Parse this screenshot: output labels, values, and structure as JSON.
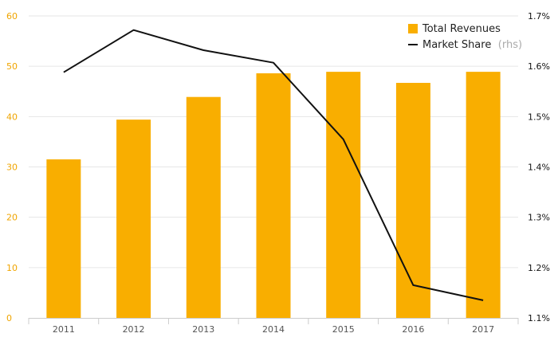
{
  "chart_data": {
    "type": "bar",
    "categories": [
      "2011",
      "2012",
      "2013",
      "2014",
      "2015",
      "2016",
      "2017"
    ],
    "series": [
      {
        "name": "Total Revenues",
        "type": "bar",
        "axis": "left",
        "values": [
          31.5,
          39.4,
          43.9,
          48.6,
          48.9,
          46.7,
          48.9
        ]
      },
      {
        "name": "Market Share",
        "type": "line",
        "axis": "right",
        "values": [
          1.588,
          1.672,
          1.632,
          1.607,
          1.455,
          1.165,
          1.135
        ]
      }
    ],
    "y_left": {
      "ylim": [
        0,
        60
      ],
      "ticks": [
        "0",
        "10",
        "20",
        "30",
        "40",
        "50",
        "60"
      ]
    },
    "y_right": {
      "ylim": [
        1.1,
        1.7
      ],
      "ticks": [
        "1.1%",
        "1.2%",
        "1.3%",
        "1.4%",
        "1.5%",
        "1.6%",
        "1.7%"
      ]
    },
    "legend": {
      "position": "top-right",
      "items": [
        {
          "label": "Total Revenues",
          "note": ""
        },
        {
          "label": "Market Share",
          "note": "(rhs)"
        }
      ]
    },
    "grid": true,
    "colors": {
      "bar": "#f9ae00",
      "line": "#111111",
      "grid": "#e6e6e6",
      "left_axis": "#f0a500"
    }
  }
}
